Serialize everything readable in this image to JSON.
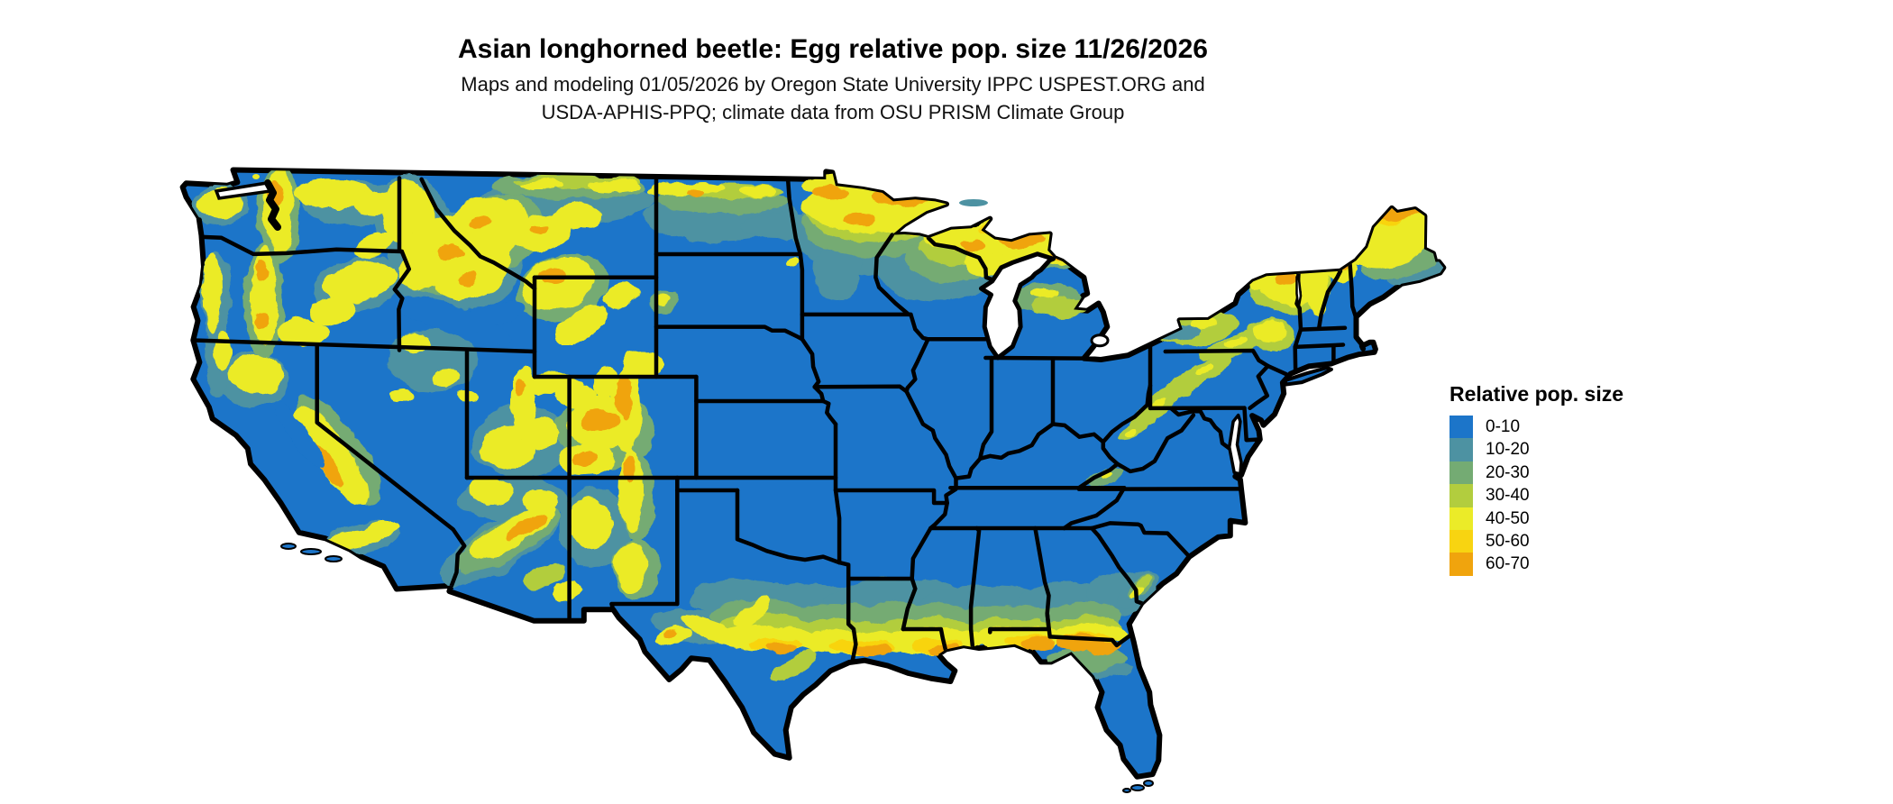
{
  "figure": {
    "title": "Asian longhorned beetle: Egg relative pop. size 11/26/2026",
    "subtitle_line1": "Maps and modeling 01/05/2026 by Oregon State University IPPC USPEST.ORG and",
    "subtitle_line2": "USDA-APHIS-PPQ; climate data from OSU PRISM Climate Group"
  },
  "legend": {
    "title": "Relative pop. size",
    "items": [
      {
        "label": "0-10",
        "color": "#1C75C9"
      },
      {
        "label": "10-20",
        "color": "#4D92A2"
      },
      {
        "label": "20-30",
        "color": "#74AB73"
      },
      {
        "label": "30-40",
        "color": "#B2CD3E"
      },
      {
        "label": "40-50",
        "color": "#EBEB28"
      },
      {
        "label": "50-60",
        "color": "#F8D411"
      },
      {
        "label": "60-70",
        "color": "#F0A40D"
      }
    ]
  },
  "chart_data": {
    "type": "heatmap",
    "title": "Asian longhorned beetle: Egg relative pop. size 11/26/2026",
    "legend_title": "Relative pop. size",
    "legend_position": "right",
    "categories": [
      "0-10",
      "10-20",
      "20-30",
      "30-40",
      "40-50",
      "50-60",
      "60-70"
    ],
    "category_colors": [
      "#1C75C9",
      "#4D92A2",
      "#74AB73",
      "#B2CD3E",
      "#EBEB28",
      "#F8D411",
      "#F0A40D"
    ],
    "region_summary": [
      {
        "region": "Most of contiguous US lowlands",
        "value_range": "0-10"
      },
      {
        "region": "Western mountain ranges (Cascades, Sierra Nevada, Rockies)",
        "value_range": "40-70"
      },
      {
        "region": "Northern Minnesota / Wisconsin / Michigan UP",
        "value_range": "40-70"
      },
      {
        "region": "Northern Maine / Adirondacks / White Mountains",
        "value_range": "40-70"
      },
      {
        "region": "Gulf Coast band (central Texas to north Florida)",
        "value_range": "10-70"
      },
      {
        "region": "Northern plains border strip (Montana, North Dakota)",
        "value_range": "10-50"
      }
    ]
  },
  "map": {
    "region_label": "Contiguous United States",
    "base_color": "#1C75C9",
    "border_color": "#000000",
    "water_color": "#FFFFFF",
    "background_color": "#FFFFFF"
  }
}
